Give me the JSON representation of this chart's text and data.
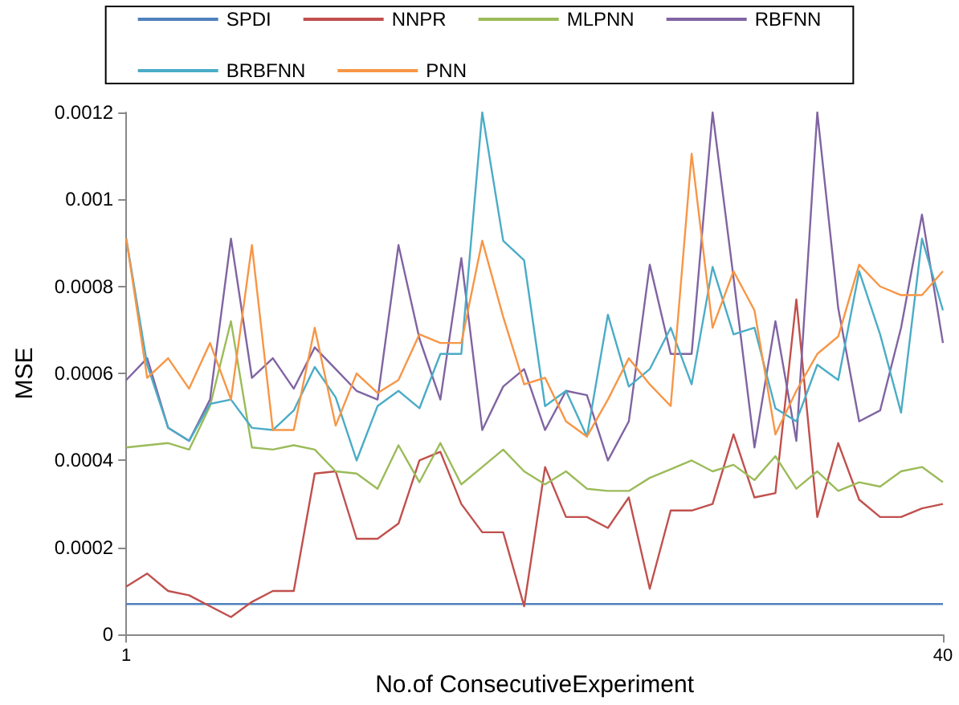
{
  "chart_data": {
    "type": "line",
    "xlabel": "No.of ConsecutiveExperiment",
    "ylabel": "MSE",
    "x": [
      1,
      2,
      3,
      4,
      5,
      6,
      7,
      8,
      9,
      10,
      11,
      12,
      13,
      14,
      15,
      16,
      17,
      18,
      19,
      20,
      21,
      22,
      23,
      24,
      25,
      26,
      27,
      28,
      29,
      30,
      31,
      32,
      33,
      34,
      35,
      36,
      37,
      38,
      39,
      40
    ],
    "xlim": [
      1,
      40
    ],
    "xticks": [
      1,
      40
    ],
    "ylim": [
      0,
      0.0012
    ],
    "yticks": [
      0,
      0.0002,
      0.0004,
      0.0006,
      0.0008,
      0.001,
      0.0012
    ],
    "grid": false,
    "legend": "top",
    "marker": "none",
    "line_style": "solid",
    "series": [
      {
        "name": "SPDI",
        "color": "#4f81bd",
        "values": [
          7e-05,
          7e-05,
          7e-05,
          7e-05,
          7e-05,
          7e-05,
          7e-05,
          7e-05,
          7e-05,
          7e-05,
          7e-05,
          7e-05,
          7e-05,
          7e-05,
          7e-05,
          7e-05,
          7e-05,
          7e-05,
          7e-05,
          7e-05,
          7e-05,
          7e-05,
          7e-05,
          7e-05,
          7e-05,
          7e-05,
          7e-05,
          7e-05,
          7e-05,
          7e-05,
          7e-05,
          7e-05,
          7e-05,
          7e-05,
          7e-05,
          7e-05,
          7e-05,
          7e-05,
          7e-05,
          7e-05
        ]
      },
      {
        "name": "NNPR",
        "color": "#c0504d",
        "values": [
          0.00011,
          0.00014,
          0.0001,
          9e-05,
          6.5e-05,
          4e-05,
          7.5e-05,
          0.0001,
          0.0001,
          0.00037,
          0.000375,
          0.00022,
          0.00022,
          0.000255,
          0.0004,
          0.00042,
          0.0003,
          0.000235,
          0.000235,
          6.5e-05,
          0.000385,
          0.00027,
          0.00027,
          0.000245,
          0.000315,
          0.000105,
          0.000285,
          0.000285,
          0.0003,
          0.00046,
          0.000315,
          0.000325,
          0.00077,
          0.00027,
          0.00044,
          0.00031,
          0.00027,
          0.00027,
          0.00029,
          0.0003
        ]
      },
      {
        "name": "MLPNN",
        "color": "#9bbb59",
        "values": [
          0.00043,
          0.000435,
          0.00044,
          0.000425,
          0.000525,
          0.00072,
          0.00043,
          0.000425,
          0.000435,
          0.000425,
          0.000375,
          0.00037,
          0.000335,
          0.000435,
          0.00035,
          0.00044,
          0.000345,
          0.000385,
          0.000425,
          0.000375,
          0.000345,
          0.000375,
          0.000335,
          0.00033,
          0.00033,
          0.00036,
          0.00038,
          0.0004,
          0.000375,
          0.00039,
          0.000355,
          0.00041,
          0.000335,
          0.000375,
          0.00033,
          0.00035,
          0.00034,
          0.000375,
          0.000385,
          0.00035
        ]
      },
      {
        "name": "RBFNN",
        "color": "#8064a2",
        "values": [
          0.000585,
          0.000635,
          0.000475,
          0.000445,
          0.00054,
          0.00091,
          0.00059,
          0.000635,
          0.000565,
          0.00066,
          0.00061,
          0.00056,
          0.00054,
          0.000895,
          0.00068,
          0.00054,
          0.000865,
          0.00047,
          0.00057,
          0.00061,
          0.00047,
          0.00056,
          0.00055,
          0.0004,
          0.00049,
          0.00085,
          0.000645,
          0.000645,
          0.0012,
          0.00082,
          0.00043,
          0.00072,
          0.000445,
          0.0012,
          0.00075,
          0.00049,
          0.000515,
          0.000705,
          0.000965,
          0.00067
        ]
      },
      {
        "name": "BRBFNN",
        "color": "#4bacc6",
        "values": [
          0.00091,
          0.00062,
          0.000475,
          0.000445,
          0.00053,
          0.00054,
          0.000475,
          0.00047,
          0.000515,
          0.000615,
          0.000545,
          0.0004,
          0.000525,
          0.00056,
          0.00052,
          0.000645,
          0.000645,
          0.0012,
          0.000905,
          0.00086,
          0.000525,
          0.00056,
          0.000455,
          0.000735,
          0.00057,
          0.00061,
          0.000705,
          0.000575,
          0.000845,
          0.00069,
          0.000705,
          0.00052,
          0.00049,
          0.00062,
          0.000585,
          0.000835,
          0.00069,
          0.00051,
          0.00091,
          0.000745
        ]
      },
      {
        "name": "PNN",
        "color": "#f79646",
        "values": [
          0.00091,
          0.00059,
          0.000635,
          0.000565,
          0.00067,
          0.00054,
          0.000895,
          0.00047,
          0.00047,
          0.000705,
          0.00048,
          0.0006,
          0.000555,
          0.000585,
          0.00069,
          0.00067,
          0.00067,
          0.000905,
          0.00073,
          0.000575,
          0.00059,
          0.00049,
          0.000455,
          0.00054,
          0.000635,
          0.000575,
          0.000525,
          0.001105,
          0.000705,
          0.000835,
          0.000745,
          0.00046,
          0.00056,
          0.000645,
          0.000685,
          0.00085,
          0.0008,
          0.00078,
          0.00078,
          0.000835
        ]
      }
    ]
  }
}
